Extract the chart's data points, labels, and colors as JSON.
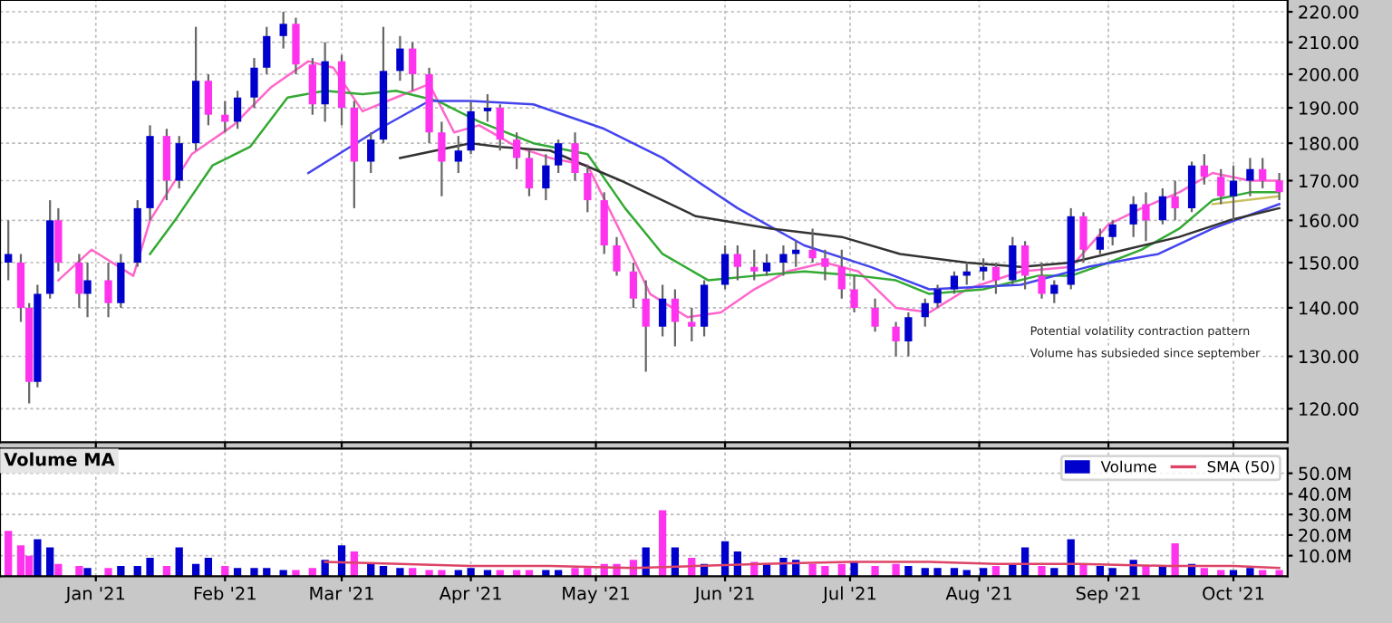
{
  "chart_data": [
    {
      "type": "candlestick",
      "log": "y",
      "grid": true,
      "tick_labels": "y",
      "xlim": [
        "2020-12-09",
        "2021-10-14"
      ],
      "xticks": [
        {
          "value": "2021-01-01",
          "label": null
        },
        {
          "value": "2021-02-01",
          "label": null
        },
        {
          "value": "2021-03-01",
          "label": null
        },
        {
          "value": "2021-04-01",
          "label": null
        },
        {
          "value": "2021-05-01",
          "label": null
        },
        {
          "value": "2021-06-01",
          "label": null
        },
        {
          "value": "2021-07-01",
          "label": null
        },
        {
          "value": "2021-08-01",
          "label": null
        },
        {
          "value": "2021-09-01",
          "label": null
        },
        {
          "value": "2021-10-01",
          "label": null
        }
      ],
      "ylim": [
        114,
        224
      ],
      "yticks": [
        {
          "value": 120,
          "label": "120.00"
        },
        {
          "value": 130,
          "label": "130.00"
        },
        {
          "value": 140,
          "label": "140.00"
        },
        {
          "value": 150,
          "label": "150.00"
        },
        {
          "value": 160,
          "label": "160.00"
        },
        {
          "value": 170,
          "label": "170.00"
        },
        {
          "value": 180,
          "label": "180.00"
        },
        {
          "value": 190,
          "label": "190.00"
        },
        {
          "value": 200,
          "label": "200.00"
        },
        {
          "value": 210,
          "label": "210.00"
        },
        {
          "value": 220,
          "label": "220.00"
        }
      ],
      "x": [
        "2020-12-11",
        "2020-12-14",
        "2020-12-16",
        "2020-12-18",
        "2020-12-21",
        "2020-12-23",
        "2020-12-28",
        "2020-12-30",
        "2021-01-04",
        "2021-01-07",
        "2021-01-11",
        "2021-01-14",
        "2021-01-18",
        "2021-01-21",
        "2021-01-25",
        "2021-01-28",
        "2021-02-01",
        "2021-02-04",
        "2021-02-08",
        "2021-02-11",
        "2021-02-15",
        "2021-02-18",
        "2021-02-22",
        "2021-02-25",
        "2021-03-01",
        "2021-03-04",
        "2021-03-08",
        "2021-03-11",
        "2021-03-15",
        "2021-03-18",
        "2021-03-22",
        "2021-03-25",
        "2021-03-29",
        "2021-04-01",
        "2021-04-05",
        "2021-04-08",
        "2021-04-12",
        "2021-04-15",
        "2021-04-19",
        "2021-04-22",
        "2021-04-26",
        "2021-04-29",
        "2021-05-03",
        "2021-05-06",
        "2021-05-10",
        "2021-05-13",
        "2021-05-17",
        "2021-05-20",
        "2021-05-24",
        "2021-05-27",
        "2021-06-01",
        "2021-06-04",
        "2021-06-08",
        "2021-06-11",
        "2021-06-15",
        "2021-06-18",
        "2021-06-22",
        "2021-06-25",
        "2021-06-29",
        "2021-07-02",
        "2021-07-07",
        "2021-07-12",
        "2021-07-15",
        "2021-07-19",
        "2021-07-22",
        "2021-07-26",
        "2021-07-29",
        "2021-08-02",
        "2021-08-05",
        "2021-08-09",
        "2021-08-12",
        "2021-08-16",
        "2021-08-19",
        "2021-08-23",
        "2021-08-26",
        "2021-08-30",
        "2021-09-02",
        "2021-09-07",
        "2021-09-10",
        "2021-09-14",
        "2021-09-17",
        "2021-09-21",
        "2021-09-24",
        "2021-09-28",
        "2021-10-01",
        "2021-10-05",
        "2021-10-08",
        "2021-10-12"
      ],
      "ohlc": [
        [
          150,
          160,
          146,
          152
        ],
        [
          150,
          152,
          137,
          140
        ],
        [
          140,
          141,
          121,
          125
        ],
        [
          125,
          145,
          124,
          143
        ],
        [
          143,
          165,
          142,
          160
        ],
        [
          160,
          163,
          148,
          150
        ],
        [
          150,
          152,
          140,
          143
        ],
        [
          143,
          150,
          138,
          146
        ],
        [
          146,
          150,
          138,
          141
        ],
        [
          141,
          152,
          140,
          150
        ],
        [
          150,
          165,
          149,
          163
        ],
        [
          163,
          185,
          160,
          182
        ],
        [
          182,
          184,
          165,
          170
        ],
        [
          170,
          182,
          168,
          180
        ],
        [
          180,
          215,
          178,
          198
        ],
        [
          198,
          200,
          185,
          188
        ],
        [
          188,
          192,
          183,
          186
        ],
        [
          186,
          195,
          184,
          193
        ],
        [
          193,
          205,
          190,
          202
        ],
        [
          202,
          215,
          200,
          212
        ],
        [
          212,
          220,
          208,
          216
        ],
        [
          216,
          218,
          200,
          203
        ],
        [
          203,
          205,
          188,
          191
        ],
        [
          191,
          210,
          186,
          204
        ],
        [
          204,
          206,
          185,
          190
        ],
        [
          190,
          192,
          163,
          175
        ],
        [
          175,
          183,
          172,
          181
        ],
        [
          181,
          215,
          180,
          201
        ],
        [
          201,
          212,
          198,
          208
        ],
        [
          208,
          210,
          195,
          200
        ],
        [
          200,
          202,
          180,
          183
        ],
        [
          183,
          186,
          166,
          175
        ],
        [
          175,
          182,
          172,
          178
        ],
        [
          178,
          192,
          177,
          189
        ],
        [
          189,
          194,
          186,
          190
        ],
        [
          190,
          191,
          178,
          181
        ],
        [
          181,
          183,
          173,
          176
        ],
        [
          176,
          178,
          166,
          168
        ],
        [
          168,
          177,
          165,
          174
        ],
        [
          174,
          181,
          172,
          180
        ],
        [
          180,
          183,
          170,
          172
        ],
        [
          172,
          174,
          162,
          165
        ],
        [
          165,
          167,
          152,
          154
        ],
        [
          154,
          156,
          147,
          148
        ],
        [
          148,
          150,
          140,
          142
        ],
        [
          142,
          146,
          127,
          136
        ],
        [
          136,
          145,
          134,
          142
        ],
        [
          142,
          144,
          132,
          137
        ],
        [
          137,
          140,
          133,
          136
        ],
        [
          136,
          146,
          134,
          145
        ],
        [
          145,
          154,
          144,
          152
        ],
        [
          152,
          154,
          146,
          149
        ],
        [
          149,
          153,
          146,
          148
        ],
        [
          148,
          152,
          147,
          150
        ],
        [
          150,
          154,
          147,
          152
        ],
        [
          152,
          155,
          149,
          153
        ],
        [
          153,
          158,
          150,
          151
        ],
        [
          151,
          153,
          146,
          149
        ],
        [
          149,
          153,
          142,
          144
        ],
        [
          144,
          147,
          139,
          140
        ],
        [
          140,
          142,
          135,
          136
        ],
        [
          136,
          137,
          130,
          133
        ],
        [
          133,
          139,
          130,
          138
        ],
        [
          138,
          142,
          136,
          141
        ],
        [
          141,
          145,
          140,
          144
        ],
        [
          144,
          148,
          143,
          147
        ],
        [
          147,
          150,
          145,
          148
        ],
        [
          148,
          151,
          146,
          149
        ],
        [
          149,
          150,
          143,
          146
        ],
        [
          146,
          156,
          145,
          154
        ],
        [
          154,
          155,
          144,
          147
        ],
        [
          147,
          150,
          142,
          143
        ],
        [
          143,
          146,
          141,
          145
        ],
        [
          145,
          163,
          144,
          161
        ],
        [
          161,
          162,
          150,
          153
        ],
        [
          153,
          158,
          152,
          156
        ],
        [
          156,
          160,
          154,
          159
        ],
        [
          159,
          166,
          156,
          164
        ],
        [
          164,
          167,
          155,
          160
        ],
        [
          160,
          168,
          159,
          166
        ],
        [
          166,
          170,
          160,
          163
        ],
        [
          163,
          175,
          162,
          174
        ],
        [
          174,
          177,
          169,
          171
        ],
        [
          171,
          173,
          164,
          166
        ],
        [
          166,
          174,
          160,
          170
        ],
        [
          170,
          176,
          166,
          173
        ],
        [
          173,
          176,
          168,
          170
        ],
        [
          170,
          172,
          165,
          167
        ]
      ],
      "colors": [
        "#0000cc",
        "#ff33ee",
        "#ff33ee",
        "#0000cc",
        "#0000cc",
        "#ff33ee",
        "#ff33ee",
        "#0000cc",
        "#ff33ee",
        "#0000cc",
        "#0000cc",
        "#0000cc",
        "#ff33ee",
        "#0000cc",
        "#0000cc",
        "#ff33ee",
        "#ff33ee",
        "#0000cc",
        "#0000cc",
        "#0000cc",
        "#0000cc",
        "#ff33ee",
        "#ff33ee",
        "#0000cc",
        "#ff33ee",
        "#ff33ee",
        "#0000cc",
        "#0000cc",
        "#0000cc",
        "#ff33ee",
        "#ff33ee",
        "#ff33ee",
        "#0000cc",
        "#0000cc",
        "#0000cc",
        "#ff33ee",
        "#ff33ee",
        "#ff33ee",
        "#0000cc",
        "#0000cc",
        "#ff33ee",
        "#ff33ee",
        "#ff33ee",
        "#ff33ee",
        "#ff33ee",
        "#ff33ee",
        "#0000cc",
        "#ff33ee",
        "#ff33ee",
        "#0000cc",
        "#0000cc",
        "#ff33ee",
        "#ff33ee",
        "#0000cc",
        "#0000cc",
        "#0000cc",
        "#ff33ee",
        "#ff33ee",
        "#ff33ee",
        "#ff33ee",
        "#ff33ee",
        "#ff33ee",
        "#0000cc",
        "#0000cc",
        "#0000cc",
        "#0000cc",
        "#0000cc",
        "#0000cc",
        "#ff33ee",
        "#0000cc",
        "#ff33ee",
        "#ff33ee",
        "#0000cc",
        "#0000cc",
        "#ff33ee",
        "#0000cc",
        "#0000cc",
        "#0000cc",
        "#ff33ee",
        "#0000cc",
        "#ff33ee",
        "#0000cc",
        "#ff33ee",
        "#ff33ee",
        "#0000cc",
        "#0000cc",
        "#ff33ee",
        "#ff33ee"
      ],
      "series": [
        {
          "type": "line",
          "color": "#ff66cc",
          "x": [
            "2020-12-23",
            "2020-12-31",
            "2021-01-10",
            "2021-01-14",
            "2021-01-24",
            "2021-02-03",
            "2021-02-12",
            "2021-02-21",
            "2021-02-27",
            "2021-03-06",
            "2021-03-14",
            "2021-03-22",
            "2021-03-28",
            "2021-04-03",
            "2021-04-12",
            "2021-04-20",
            "2021-04-29",
            "2021-05-08",
            "2021-05-14",
            "2021-05-23",
            "2021-05-31",
            "2021-06-08",
            "2021-06-16",
            "2021-06-25",
            "2021-07-03",
            "2021-07-12",
            "2021-07-20",
            "2021-07-29",
            "2021-08-11",
            "2021-08-23",
            "2021-09-01",
            "2021-09-09",
            "2021-09-18",
            "2021-09-26",
            "2021-10-05",
            "2021-10-12"
          ],
          "values": [
            146,
            153,
            147,
            160,
            177,
            185,
            196,
            204,
            202,
            189,
            193,
            197,
            183,
            185,
            179,
            176,
            174,
            155,
            143,
            138,
            139,
            144,
            148,
            150,
            148,
            140,
            139,
            144,
            148,
            149,
            159,
            163,
            167,
            172,
            170,
            170
          ]
        },
        {
          "type": "line",
          "color": "#33aa33",
          "x": [
            "2021-01-14",
            "2021-01-20",
            "2021-01-29",
            "2021-02-07",
            "2021-02-16",
            "2021-02-25",
            "2021-03-06",
            "2021-03-14",
            "2021-03-24",
            "2021-04-03",
            "2021-04-16",
            "2021-04-29",
            "2021-05-08",
            "2021-05-17",
            "2021-05-28",
            "2021-06-08",
            "2021-06-20",
            "2021-07-03",
            "2021-07-12",
            "2021-07-20",
            "2021-08-02",
            "2021-08-15",
            "2021-08-23",
            "2021-09-01",
            "2021-09-09",
            "2021-09-18",
            "2021-09-26",
            "2021-10-05",
            "2021-10-12"
          ],
          "values": [
            152,
            160,
            174,
            179,
            193,
            195,
            194,
            195,
            192,
            186,
            180,
            177,
            163,
            152,
            146,
            147,
            148,
            147,
            146,
            143,
            144,
            147,
            147,
            150,
            153,
            158,
            165,
            167,
            167
          ]
        },
        {
          "type": "line",
          "color": "#4444ee",
          "x": [
            "2021-02-21",
            "2021-03-10",
            "2021-03-22",
            "2021-04-01",
            "2021-04-16",
            "2021-05-03",
            "2021-05-17",
            "2021-06-04",
            "2021-06-20",
            "2021-07-06",
            "2021-07-20",
            "2021-08-11",
            "2021-08-27",
            "2021-09-13",
            "2021-09-26",
            "2021-10-12"
          ],
          "values": [
            172,
            184,
            192,
            192,
            191,
            184,
            176,
            163,
            154,
            149,
            144,
            145,
            149,
            152,
            158,
            164
          ]
        },
        {
          "type": "line",
          "color": "#333333",
          "x": [
            "2021-03-15",
            "2021-04-01",
            "2021-04-08",
            "2021-04-20",
            "2021-05-07",
            "2021-05-25",
            "2021-06-12",
            "2021-06-29",
            "2021-07-13",
            "2021-07-29",
            "2021-08-11",
            "2021-08-23",
            "2021-09-05",
            "2021-09-18",
            "2021-09-30",
            "2021-10-12"
          ],
          "values": [
            176,
            180,
            179,
            178,
            170,
            161,
            158,
            156,
            152,
            150,
            149,
            150,
            153,
            156,
            160,
            163
          ]
        },
        {
          "type": "line",
          "color": "#c8c060",
          "x": [
            "2021-09-26",
            "2021-10-12"
          ],
          "values": [
            164,
            166
          ]
        }
      ],
      "annotations": [
        "Potential volatility contraction pattern",
        "Volume has subsieded since september"
      ]
    },
    {
      "type": "bar",
      "title": "Volume MA",
      "grid": true,
      "legend": "top right",
      "xlim": [
        "2020-12-09",
        "2021-10-14"
      ],
      "xticks": [
        {
          "value": "2021-01-01",
          "label": "Jan '21"
        },
        {
          "value": "2021-02-01",
          "label": "Feb '21"
        },
        {
          "value": "2021-03-01",
          "label": "Mar '21"
        },
        {
          "value": "2021-04-01",
          "label": "Apr '21"
        },
        {
          "value": "2021-05-01",
          "label": "May '21"
        },
        {
          "value": "2021-06-01",
          "label": "Jun '21"
        },
        {
          "value": "2021-07-01",
          "label": "Jul '21"
        },
        {
          "value": "2021-08-01",
          "label": "Aug '21"
        },
        {
          "value": "2021-09-01",
          "label": "Sep '21"
        },
        {
          "value": "2021-10-01",
          "label": "Oct '21"
        }
      ],
      "ylim": [
        0,
        62
      ],
      "yticks": [
        {
          "value": 10,
          "label": "10.0M"
        },
        {
          "value": 20,
          "label": "20.0M"
        },
        {
          "value": 30,
          "label": "30.0M"
        },
        {
          "value": 40,
          "label": "40.0M"
        },
        {
          "value": 50,
          "label": "50.0M"
        }
      ],
      "series": [
        {
          "name": "Volume",
          "type": "bar",
          "color": "#0000cc",
          "x": [
            "2020-12-11",
            "2020-12-14",
            "2020-12-16",
            "2020-12-18",
            "2020-12-21",
            "2020-12-23",
            "2020-12-28",
            "2020-12-30",
            "2021-01-04",
            "2021-01-07",
            "2021-01-11",
            "2021-01-14",
            "2021-01-18",
            "2021-01-21",
            "2021-01-25",
            "2021-01-28",
            "2021-02-01",
            "2021-02-04",
            "2021-02-08",
            "2021-02-11",
            "2021-02-15",
            "2021-02-18",
            "2021-02-22",
            "2021-02-25",
            "2021-03-01",
            "2021-03-04",
            "2021-03-08",
            "2021-03-11",
            "2021-03-15",
            "2021-03-18",
            "2021-03-22",
            "2021-03-25",
            "2021-03-29",
            "2021-04-01",
            "2021-04-05",
            "2021-04-08",
            "2021-04-12",
            "2021-04-15",
            "2021-04-19",
            "2021-04-22",
            "2021-04-26",
            "2021-04-29",
            "2021-05-03",
            "2021-05-06",
            "2021-05-10",
            "2021-05-13",
            "2021-05-17",
            "2021-05-20",
            "2021-05-24",
            "2021-05-27",
            "2021-06-01",
            "2021-06-04",
            "2021-06-08",
            "2021-06-11",
            "2021-06-15",
            "2021-06-18",
            "2021-06-22",
            "2021-06-25",
            "2021-06-29",
            "2021-07-02",
            "2021-07-07",
            "2021-07-12",
            "2021-07-15",
            "2021-07-19",
            "2021-07-22",
            "2021-07-26",
            "2021-07-29",
            "2021-08-02",
            "2021-08-05",
            "2021-08-09",
            "2021-08-12",
            "2021-08-16",
            "2021-08-19",
            "2021-08-23",
            "2021-08-26",
            "2021-08-30",
            "2021-09-02",
            "2021-09-07",
            "2021-09-10",
            "2021-09-14",
            "2021-09-17",
            "2021-09-21",
            "2021-09-24",
            "2021-09-28",
            "2021-10-01",
            "2021-10-05",
            "2021-10-08",
            "2021-10-12"
          ],
          "values": [
            22,
            15,
            10,
            18,
            14,
            6,
            5,
            4,
            4,
            5,
            5,
            9,
            5,
            14,
            6,
            9,
            5,
            4,
            4,
            4,
            3,
            3,
            4,
            8,
            15,
            12,
            6,
            5,
            4,
            4,
            3,
            3,
            3,
            4,
            3,
            3,
            3,
            3,
            3,
            3,
            4,
            4,
            6,
            6,
            8,
            14,
            32,
            14,
            9,
            6,
            17,
            12,
            7,
            6,
            9,
            8,
            6,
            5,
            6,
            7,
            5,
            6,
            5,
            4,
            4,
            4,
            3,
            4,
            5,
            6,
            14,
            5,
            4,
            18,
            6,
            5,
            4,
            8,
            5,
            5,
            16,
            6,
            4,
            3,
            3,
            4,
            3,
            3
          ],
          "colors": [
            "#ff33ee",
            "#ff33ee",
            "#ff33ee",
            "#0000cc",
            "#0000cc",
            "#ff33ee",
            "#ff33ee",
            "#0000cc",
            "#ff33ee",
            "#0000cc",
            "#0000cc",
            "#0000cc",
            "#ff33ee",
            "#0000cc",
            "#0000cc",
            "#0000cc",
            "#ff33ee",
            "#0000cc",
            "#0000cc",
            "#0000cc",
            "#0000cc",
            "#ff33ee",
            "#ff33ee",
            "#0000cc",
            "#0000cc",
            "#ff33ee",
            "#0000cc",
            "#0000cc",
            "#0000cc",
            "#ff33ee",
            "#ff33ee",
            "#ff33ee",
            "#0000cc",
            "#0000cc",
            "#0000cc",
            "#ff33ee",
            "#ff33ee",
            "#ff33ee",
            "#0000cc",
            "#0000cc",
            "#ff33ee",
            "#ff33ee",
            "#ff33ee",
            "#ff33ee",
            "#ff33ee",
            "#0000cc",
            "#ff33ee",
            "#0000cc",
            "#ff33ee",
            "#0000cc",
            "#0000cc",
            "#0000cc",
            "#ff33ee",
            "#0000cc",
            "#0000cc",
            "#0000cc",
            "#ff33ee",
            "#ff33ee",
            "#ff33ee",
            "#0000cc",
            "#ff33ee",
            "#ff33ee",
            "#0000cc",
            "#0000cc",
            "#0000cc",
            "#0000cc",
            "#0000cc",
            "#0000cc",
            "#ff33ee",
            "#0000cc",
            "#0000cc",
            "#ff33ee",
            "#0000cc",
            "#0000cc",
            "#ff33ee",
            "#0000cc",
            "#0000cc",
            "#0000cc",
            "#ff33ee",
            "#0000cc",
            "#ff33ee",
            "#0000cc",
            "#ff33ee",
            "#ff33ee",
            "#0000cc",
            "#0000cc",
            "#ff33ee",
            "#ff33ee"
          ]
        },
        {
          "name": "SMA (50)",
          "type": "line",
          "color": "#dd4466",
          "x": [
            "2021-02-25",
            "2021-03-15",
            "2021-04-01",
            "2021-04-20",
            "2021-05-10",
            "2021-05-25",
            "2021-06-10",
            "2021-07-01",
            "2021-07-20",
            "2021-08-05",
            "2021-08-25",
            "2021-09-15",
            "2021-10-01",
            "2021-10-12"
          ],
          "values": [
            7,
            6,
            5,
            5,
            4,
            5,
            6,
            7,
            7,
            6,
            6,
            5,
            5,
            4
          ]
        }
      ]
    }
  ]
}
